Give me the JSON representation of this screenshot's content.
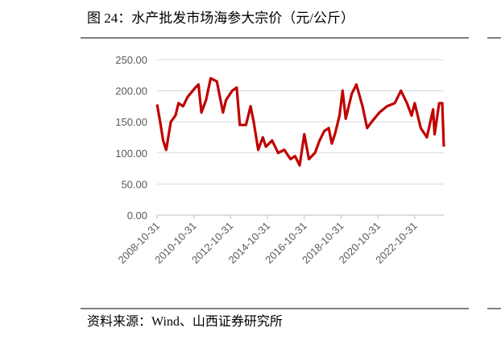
{
  "chart_data": {
    "type": "line",
    "title": "图 24：水产批发市场海参大宗价（元/公斤）",
    "source": "资料来源：Wind、山西证券研究所",
    "x": [
      "2008-10-31",
      "2008-12-31",
      "2009-02-28",
      "2009-04-30",
      "2009-07-31",
      "2009-10-31",
      "2009-12-31",
      "2010-03-31",
      "2010-06-30",
      "2010-11-30",
      "2011-01-31",
      "2011-03-31",
      "2011-06-30",
      "2011-09-30",
      "2012-01-31",
      "2012-03-31",
      "2012-05-31",
      "2012-07-31",
      "2012-11-30",
      "2013-02-28",
      "2013-04-30",
      "2013-08-31",
      "2013-11-30",
      "2014-01-31",
      "2014-04-30",
      "2014-07-31",
      "2014-09-30",
      "2015-01-31",
      "2015-05-31",
      "2015-09-30",
      "2016-01-31",
      "2016-04-30",
      "2016-07-31",
      "2016-10-31",
      "2017-01-31",
      "2017-05-31",
      "2017-08-31",
      "2017-11-30",
      "2018-02-28",
      "2018-04-30",
      "2018-06-30",
      "2018-09-30",
      "2018-11-30",
      "2019-01-31",
      "2019-05-31",
      "2019-08-31",
      "2019-12-31",
      "2020-03-31",
      "2020-06-30",
      "2020-11-30",
      "2021-04-30",
      "2021-09-30",
      "2022-01-31",
      "2022-05-31",
      "2022-08-31",
      "2022-10-31",
      "2023-02-28",
      "2023-06-30",
      "2023-10-31",
      "2023-11-30",
      "2024-02-29",
      "2024-04-30",
      "2024-05-31"
    ],
    "series": [
      {
        "name": "海参大宗价",
        "color": "#c00000",
        "values": [
          178,
          150,
          120,
          105,
          150,
          160,
          180,
          175,
          190,
          205,
          210,
          165,
          185,
          220,
          215,
          190,
          165,
          185,
          200,
          205,
          145,
          145,
          175,
          150,
          105,
          125,
          110,
          120,
          100,
          105,
          90,
          95,
          80,
          130,
          90,
          100,
          120,
          135,
          140,
          115,
          130,
          160,
          200,
          155,
          195,
          210,
          175,
          140,
          150,
          165,
          175,
          180,
          200,
          180,
          160,
          180,
          140,
          125,
          170,
          130,
          180,
          180,
          110
        ]
      }
    ],
    "xlim": [
      "2008-10-31",
      "2024-05-31"
    ],
    "xticks": [
      "2008-10-31",
      "2010-10-31",
      "2012-10-31",
      "2014-10-31",
      "2016-10-31",
      "2018-10-31",
      "2020-10-31",
      "2022-10-31"
    ],
    "ylim": [
      0,
      250
    ],
    "yticks": [
      {
        "value": 0,
        "label": "0.00"
      },
      {
        "value": 50,
        "label": "50.00"
      },
      {
        "value": 100,
        "label": "100.00"
      },
      {
        "value": 150,
        "label": "150.00"
      },
      {
        "value": 200,
        "label": "200.00"
      },
      {
        "value": 250,
        "label": "250.00"
      }
    ],
    "grid": true
  }
}
